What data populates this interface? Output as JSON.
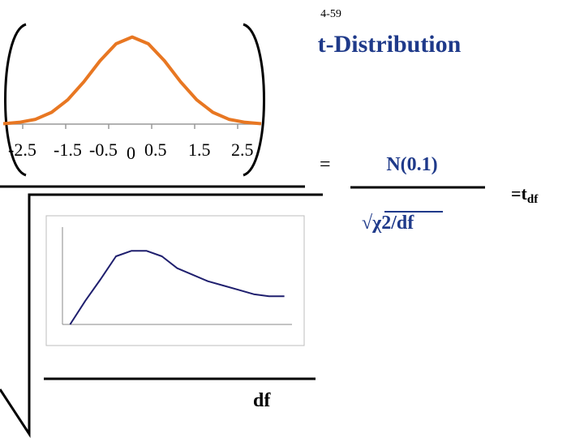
{
  "header": {
    "page_number": "4-59",
    "title": "t-Distribution"
  },
  "top_plot": {
    "tick_labels": [
      "-2.5",
      "-1.5",
      "-0.5",
      "0",
      "0.5",
      "1.5",
      "2.5"
    ],
    "curve_color": "#e87722",
    "chart_data": {
      "type": "line",
      "x": [
        -3.2,
        -2.8,
        -2.4,
        -2.0,
        -1.6,
        -1.2,
        -0.8,
        -0.4,
        0.0,
        0.4,
        0.8,
        1.2,
        1.6,
        2.0,
        2.4,
        2.8,
        3.2
      ],
      "y": [
        0.002,
        0.008,
        0.022,
        0.054,
        0.111,
        0.194,
        0.29,
        0.368,
        0.399,
        0.368,
        0.29,
        0.194,
        0.111,
        0.054,
        0.022,
        0.008,
        0.002
      ],
      "xlim": [
        -3.2,
        3.2
      ],
      "ylim": [
        0,
        0.42
      ]
    }
  },
  "formula": {
    "equals": "=",
    "numerator": "N(0.1)",
    "denominator": "√χ2/df",
    "result": "=t",
    "result_sub": "df",
    "df_label": "df",
    "color": "#1f3a8a"
  },
  "bottom_plot": {
    "curve_color": "#1f1f6e",
    "chart_data": {
      "type": "line",
      "x": [
        0,
        1,
        2,
        3,
        4,
        5,
        6,
        7,
        8,
        9,
        10,
        11,
        12,
        13,
        14
      ],
      "y": [
        0,
        0.22,
        0.42,
        0.63,
        0.68,
        0.68,
        0.63,
        0.52,
        0.46,
        0.4,
        0.36,
        0.32,
        0.28,
        0.26,
        0.26
      ],
      "xlim": [
        -0.5,
        14.5
      ],
      "ylim": [
        0,
        0.9
      ]
    }
  }
}
